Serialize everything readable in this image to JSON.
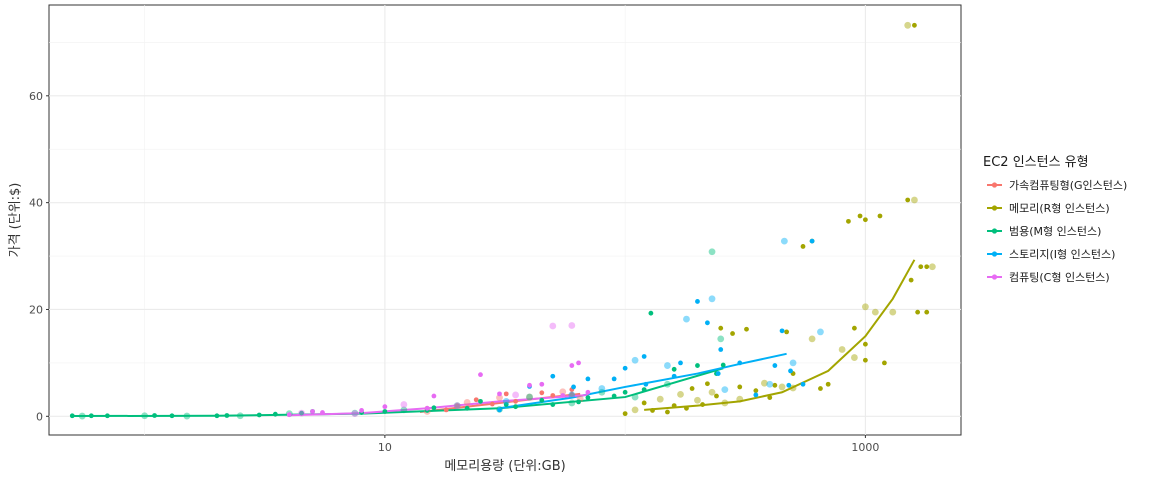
{
  "chart_data": {
    "type": "scatter",
    "xlabel": "메모리용량 (단위:GB)",
    "ylabel": "가격 (단위:$)",
    "x_scale": "log10",
    "xlim": [
      0.4,
      2500
    ],
    "ylim": [
      -3.5,
      77
    ],
    "x_ticks": [
      10,
      1000
    ],
    "y_ticks": [
      0,
      20,
      40,
      60
    ],
    "grid": true,
    "legend_position": "right",
    "legend_title": "EC2 인스턴스 유형",
    "series": [
      {
        "name": "가속컴퓨팅형(G인스턴스)",
        "color": "#F8766D",
        "points": [
          [
            15,
            1.5
          ],
          [
            15,
            0.9
          ],
          [
            18,
            1.2
          ],
          [
            20,
            2.0
          ],
          [
            22,
            2.6
          ],
          [
            24,
            3.1
          ],
          [
            28,
            2.3
          ],
          [
            30,
            3.5
          ],
          [
            32,
            4.2
          ],
          [
            35,
            2.8
          ],
          [
            40,
            3.6
          ],
          [
            45,
            4.4
          ],
          [
            50,
            3.9
          ],
          [
            55,
            4.6
          ],
          [
            60,
            5.0
          ],
          [
            60,
            4.1
          ],
          [
            65,
            3.3
          ]
        ],
        "trend": [
          [
            14,
            0.8
          ],
          [
            20,
            1.6
          ],
          [
            30,
            2.5
          ],
          [
            45,
            3.4
          ],
          [
            65,
            4.2
          ]
        ]
      },
      {
        "name": "메모리(R형 인스턴스)",
        "color": "#A3A500",
        "points": [
          [
            100,
            0.5
          ],
          [
            110,
            1.2
          ],
          [
            120,
            2.5
          ],
          [
            130,
            1.1
          ],
          [
            140,
            3.2
          ],
          [
            150,
            0.8
          ],
          [
            160,
            2.0
          ],
          [
            170,
            4.1
          ],
          [
            180,
            1.5
          ],
          [
            190,
            5.2
          ],
          [
            200,
            3.0
          ],
          [
            210,
            2.2
          ],
          [
            220,
            6.1
          ],
          [
            230,
            4.5
          ],
          [
            240,
            3.8
          ],
          [
            250,
            16.5
          ],
          [
            260,
            2.5
          ],
          [
            280,
            15.5
          ],
          [
            300,
            5.5
          ],
          [
            300,
            3.2
          ],
          [
            320,
            16.3
          ],
          [
            350,
            4.8
          ],
          [
            380,
            6.2
          ],
          [
            400,
            3.5
          ],
          [
            420,
            5.8
          ],
          [
            450,
            5.5
          ],
          [
            470,
            15.8
          ],
          [
            500,
            8.0
          ],
          [
            500,
            5.3
          ],
          [
            550,
            31.8
          ],
          [
            600,
            32.8
          ],
          [
            600,
            14.5
          ],
          [
            650,
            5.2
          ],
          [
            700,
            6.0
          ],
          [
            800,
            12.5
          ],
          [
            850,
            36.5
          ],
          [
            900,
            16.5
          ],
          [
            900,
            11.0
          ],
          [
            950,
            37.5
          ],
          [
            1000,
            36.8
          ],
          [
            1000,
            20.5
          ],
          [
            1000,
            13.5
          ],
          [
            1000,
            10.5
          ],
          [
            1100,
            19.5
          ],
          [
            1150,
            37.5
          ],
          [
            1200,
            10.0
          ],
          [
            1300,
            19.5
          ],
          [
            1500,
            40.5
          ],
          [
            1550,
            25.5
          ],
          [
            1600,
            40.5
          ],
          [
            1650,
            19.5
          ],
          [
            1700,
            28.0
          ],
          [
            1500,
            73.2
          ],
          [
            1600,
            73.2
          ],
          [
            1800,
            28.0
          ],
          [
            1900,
            28.0
          ],
          [
            1800,
            19.5
          ]
        ],
        "trend": [
          [
            120,
            1.2
          ],
          [
            200,
            2.0
          ],
          [
            300,
            2.8
          ],
          [
            450,
            4.5
          ],
          [
            700,
            8.5
          ],
          [
            1000,
            15.0
          ],
          [
            1300,
            22.0
          ],
          [
            1600,
            29.3
          ]
        ]
      },
      {
        "name": "범용(M형 인스턴스)",
        "color": "#00BF7D",
        "points": [
          [
            0.5,
            0.1
          ],
          [
            0.55,
            0.05
          ],
          [
            0.6,
            0.1
          ],
          [
            0.7,
            0.1
          ],
          [
            1,
            0.1
          ],
          [
            1.1,
            0.15
          ],
          [
            1.3,
            0.1
          ],
          [
            1.5,
            0.05
          ],
          [
            2,
            0.1
          ],
          [
            2.2,
            0.15
          ],
          [
            2.5,
            0.1
          ],
          [
            3,
            0.25
          ],
          [
            3.5,
            0.4
          ],
          [
            4,
            0.5
          ],
          [
            4.5,
            0.6
          ],
          [
            5,
            0.9
          ],
          [
            7.5,
            0.6
          ],
          [
            8,
            0.7
          ],
          [
            10,
            0.9
          ],
          [
            12,
            1.2
          ],
          [
            15,
            1.1
          ],
          [
            16,
            1.6
          ],
          [
            20,
            2.0
          ],
          [
            22,
            1.5
          ],
          [
            25,
            2.8
          ],
          [
            30,
            1.3
          ],
          [
            32,
            2.2
          ],
          [
            35,
            1.8
          ],
          [
            40,
            3.6
          ],
          [
            45,
            3.0
          ],
          [
            50,
            2.2
          ],
          [
            60,
            2.5
          ],
          [
            64,
            2.7
          ],
          [
            70,
            3.5
          ],
          [
            80,
            4.5
          ],
          [
            90,
            3.8
          ],
          [
            100,
            4.5
          ],
          [
            110,
            3.6
          ],
          [
            120,
            5.0
          ],
          [
            128,
            19.3
          ],
          [
            150,
            6.0
          ],
          [
            160,
            8.8
          ],
          [
            200,
            9.5
          ],
          [
            230,
            30.8
          ],
          [
            240,
            8.0
          ],
          [
            256,
            9.6
          ],
          [
            250,
            14.5
          ]
        ],
        "trend": [
          [
            0.5,
            0.05
          ],
          [
            2,
            0.1
          ],
          [
            8,
            0.5
          ],
          [
            30,
            1.5
          ],
          [
            100,
            3.6
          ],
          [
            256,
            9.0
          ]
        ]
      },
      {
        "name": "스토리지(I형 인스턴스)",
        "color": "#00B0F6",
        "points": [
          [
            30,
            1.2
          ],
          [
            32,
            2.8
          ],
          [
            40,
            5.6
          ],
          [
            50,
            7.5
          ],
          [
            60,
            4.0
          ],
          [
            61,
            5.5
          ],
          [
            70,
            7.0
          ],
          [
            80,
            5.2
          ],
          [
            90,
            7.0
          ],
          [
            100,
            9.0
          ],
          [
            110,
            10.5
          ],
          [
            120,
            11.2
          ],
          [
            122,
            6.0
          ],
          [
            150,
            9.5
          ],
          [
            160,
            7.5
          ],
          [
            170,
            10.0
          ],
          [
            180,
            18.2
          ],
          [
            200,
            21.5
          ],
          [
            220,
            17.5
          ],
          [
            230,
            22.0
          ],
          [
            244,
            8.0
          ],
          [
            250,
            12.5
          ],
          [
            260,
            5.0
          ],
          [
            300,
            10.0
          ],
          [
            350,
            4.0
          ],
          [
            400,
            6.0
          ],
          [
            420,
            9.5
          ],
          [
            450,
            16.0
          ],
          [
            460,
            32.8
          ],
          [
            480,
            5.8
          ],
          [
            488,
            8.5
          ],
          [
            500,
            10.0
          ],
          [
            550,
            6.0
          ],
          [
            600,
            32.8
          ],
          [
            650,
            15.8
          ]
        ],
        "trend": [
          [
            30,
            1.5
          ],
          [
            60,
            3.5
          ],
          [
            100,
            5.5
          ],
          [
            200,
            8.0
          ],
          [
            300,
            9.8
          ],
          [
            470,
            11.7
          ]
        ]
      },
      {
        "name": "컴퓨팅(C형 인스턴스)",
        "color": "#E76BF3",
        "points": [
          [
            4,
            0.3
          ],
          [
            4.5,
            0.6
          ],
          [
            5,
            0.9
          ],
          [
            5.5,
            0.7
          ],
          [
            7.5,
            0.5
          ],
          [
            8,
            1.1
          ],
          [
            10,
            1.8
          ],
          [
            12,
            2.2
          ],
          [
            15,
            1.5
          ],
          [
            16,
            3.8
          ],
          [
            20,
            2.0
          ],
          [
            25,
            7.8
          ],
          [
            30,
            4.2
          ],
          [
            35,
            4.0
          ],
          [
            40,
            5.8
          ],
          [
            45,
            6.0
          ],
          [
            50,
            16.9
          ],
          [
            55,
            3.9
          ],
          [
            60,
            9.5
          ],
          [
            60,
            17.0
          ],
          [
            64,
            10.0
          ],
          [
            70,
            4.5
          ]
        ],
        "trend": [
          [
            4,
            0.2
          ],
          [
            8,
            0.6
          ],
          [
            15,
            1.5
          ],
          [
            30,
            2.8
          ],
          [
            70,
            4.0
          ]
        ]
      }
    ]
  }
}
